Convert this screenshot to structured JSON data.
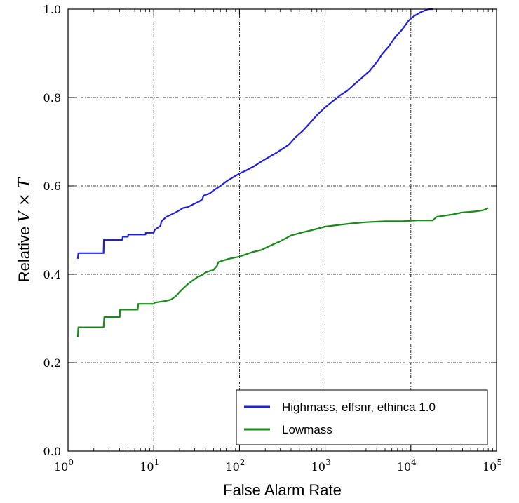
{
  "chart_data": {
    "type": "line",
    "title": "",
    "xlabel": "False Alarm Rate",
    "ylabel_prefix": "Relative ",
    "ylabel_math": "V × T",
    "xscale": "log",
    "xlim": [
      1,
      100000
    ],
    "ylim": [
      0.0,
      1.0
    ],
    "grid": true,
    "legend_position": "lower right",
    "x_ticks": [
      {
        "value": 1,
        "base": "10",
        "exp": "0"
      },
      {
        "value": 10,
        "base": "10",
        "exp": "1"
      },
      {
        "value": 100,
        "base": "10",
        "exp": "2"
      },
      {
        "value": 1000,
        "base": "10",
        "exp": "3"
      },
      {
        "value": 10000,
        "base": "10",
        "exp": "4"
      },
      {
        "value": 100000,
        "base": "10",
        "exp": "5"
      }
    ],
    "y_ticks": [
      {
        "value": 0.0,
        "label": "0.0"
      },
      {
        "value": 0.2,
        "label": "0.2"
      },
      {
        "value": 0.4,
        "label": "0.4"
      },
      {
        "value": 0.6,
        "label": "0.6"
      },
      {
        "value": 0.8,
        "label": "0.8"
      },
      {
        "value": 1.0,
        "label": "1.0"
      }
    ],
    "series": [
      {
        "name": "Highmass, effsnr, ethinca 1.0",
        "color": "#1f1fe0",
        "x": [
          1.3,
          1.32,
          2.6,
          2.62,
          4.3,
          4.35,
          5.0,
          5.05,
          8.0,
          8.1,
          10.0,
          10.2,
          12.0,
          12.3,
          14.0,
          16.0,
          18.0,
          20.0,
          22.0,
          25.0,
          30.0,
          34.0,
          37.0,
          38.0,
          45.0,
          50.0,
          60.0,
          70.0,
          85.0,
          100.0,
          120.0,
          150.0,
          180.0,
          220.0,
          270.0,
          330.0,
          380.0,
          450.0,
          550.0,
          650.0,
          800.0,
          1000.0,
          1200.0,
          1500.0,
          1800.0,
          2200.0,
          2700.0,
          3300.0,
          4000.0,
          4700.0,
          5500.0,
          6500.0,
          8000.0,
          9500.0,
          11000.0,
          13000.0,
          16000.0,
          18000.0
        ],
        "y": [
          0.435,
          0.448,
          0.448,
          0.478,
          0.478,
          0.485,
          0.485,
          0.49,
          0.49,
          0.494,
          0.494,
          0.5,
          0.51,
          0.52,
          0.53,
          0.535,
          0.54,
          0.545,
          0.55,
          0.552,
          0.56,
          0.565,
          0.57,
          0.578,
          0.583,
          0.59,
          0.6,
          0.61,
          0.62,
          0.628,
          0.635,
          0.645,
          0.655,
          0.665,
          0.675,
          0.686,
          0.694,
          0.71,
          0.725,
          0.74,
          0.76,
          0.778,
          0.79,
          0.805,
          0.815,
          0.83,
          0.845,
          0.86,
          0.88,
          0.9,
          0.915,
          0.935,
          0.955,
          0.975,
          0.985,
          0.993,
          1.0,
          1.0
        ]
      },
      {
        "name": "Lowmass",
        "color": "#1a8a1a",
        "x": [
          1.3,
          1.32,
          2.6,
          2.65,
          4.0,
          4.05,
          6.5,
          6.6,
          10.0,
          10.3,
          14.0,
          16.0,
          18.0,
          20.0,
          22.0,
          25.0,
          28.0,
          32.0,
          38.0,
          40.0,
          50.0,
          55.0,
          57.0,
          75.0,
          100.0,
          140.0,
          180.0,
          230.0,
          300.0,
          400.0,
          550.0,
          700.0,
          1000.0,
          1500.0,
          2000.0,
          3000.0,
          5000.0,
          8000.0,
          12000.0,
          18000.0,
          20000.0,
          30000.0,
          40000.0,
          55000.0,
          70000.0,
          80000.0
        ],
        "y": [
          0.258,
          0.28,
          0.28,
          0.303,
          0.303,
          0.32,
          0.32,
          0.333,
          0.333,
          0.336,
          0.34,
          0.343,
          0.35,
          0.36,
          0.368,
          0.378,
          0.385,
          0.393,
          0.4,
          0.404,
          0.41,
          0.42,
          0.428,
          0.435,
          0.44,
          0.45,
          0.455,
          0.465,
          0.475,
          0.488,
          0.495,
          0.5,
          0.508,
          0.512,
          0.515,
          0.518,
          0.52,
          0.52,
          0.522,
          0.522,
          0.53,
          0.535,
          0.54,
          0.542,
          0.545,
          0.55
        ]
      }
    ]
  }
}
